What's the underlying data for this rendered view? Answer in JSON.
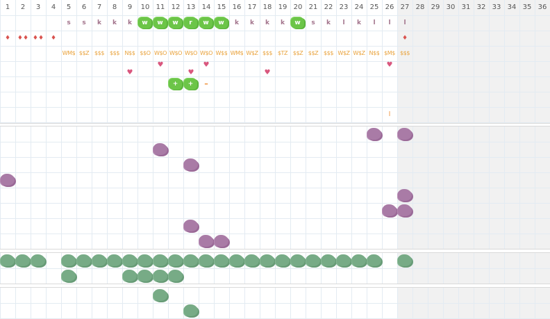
{
  "columns": [
    "1",
    "2",
    "3",
    "4",
    "5",
    "6",
    "7",
    "8",
    "9",
    "10",
    "11",
    "12",
    "13",
    "14",
    "15",
    "16",
    "17",
    "18",
    "19",
    "20",
    "21",
    "22",
    "23",
    "24",
    "25",
    "26",
    "27",
    "28",
    "29",
    "30",
    "31",
    "32",
    "33",
    "34",
    "35",
    "36"
  ],
  "shaded_from_column": 27,
  "colors": {
    "grid_line": "#e3ebf2",
    "shade": "#f1f1f1",
    "letter": "#a2738b",
    "dollar": "#e9a23b",
    "drop": "#d9534f",
    "heart": "#d9577e",
    "badge": "#6cc548",
    "purple_blob": "#a97ba6",
    "green_blob": "#77ab86",
    "minus": "#ee8a2c"
  },
  "rows": {
    "letters": [
      {
        "col": 5,
        "text": "s"
      },
      {
        "col": 6,
        "text": "s"
      },
      {
        "col": 7,
        "text": "k"
      },
      {
        "col": 8,
        "text": "k"
      },
      {
        "col": 9,
        "text": "k"
      },
      {
        "col": 16,
        "text": "k"
      },
      {
        "col": 17,
        "text": "k"
      },
      {
        "col": 18,
        "text": "k"
      },
      {
        "col": 19,
        "text": "k"
      },
      {
        "col": 21,
        "text": "s"
      },
      {
        "col": 22,
        "text": "k"
      },
      {
        "col": 23,
        "text": "l"
      },
      {
        "col": 24,
        "text": "k"
      },
      {
        "col": 25,
        "text": "l"
      },
      {
        "col": 26,
        "text": "l"
      },
      {
        "col": 27,
        "text": "l"
      }
    ],
    "badges": [
      {
        "col": 10,
        "text": "w"
      },
      {
        "col": 11,
        "text": "w"
      },
      {
        "col": 12,
        "text": "w"
      },
      {
        "col": 13,
        "text": "r"
      },
      {
        "col": 14,
        "text": "w"
      },
      {
        "col": 15,
        "text": "w"
      },
      {
        "col": 20,
        "text": "w"
      }
    ],
    "drops": [
      {
        "col": 1,
        "text": "♦"
      },
      {
        "col": 2,
        "text": "♦♦"
      },
      {
        "col": 3,
        "text": "♦♦"
      },
      {
        "col": 4,
        "text": "♦"
      },
      {
        "col": 27,
        "text": "♦"
      }
    ],
    "dollars": [
      {
        "col": 5,
        "text": "WM$"
      },
      {
        "col": 6,
        "text": "$$Z"
      },
      {
        "col": 7,
        "text": "$$$"
      },
      {
        "col": 8,
        "text": "$$$"
      },
      {
        "col": 9,
        "text": "N$$"
      },
      {
        "col": 10,
        "text": "$$O"
      },
      {
        "col": 11,
        "text": "W$O"
      },
      {
        "col": 12,
        "text": "W$O"
      },
      {
        "col": 13,
        "text": "W$O"
      },
      {
        "col": 14,
        "text": "W$O"
      },
      {
        "col": 15,
        "text": "W$$"
      },
      {
        "col": 16,
        "text": "WM$"
      },
      {
        "col": 17,
        "text": "W$Z"
      },
      {
        "col": 18,
        "text": "$$$"
      },
      {
        "col": 19,
        "text": "$TZ"
      },
      {
        "col": 20,
        "text": "$$Z"
      },
      {
        "col": 21,
        "text": "$$Z"
      },
      {
        "col": 22,
        "text": "$$$"
      },
      {
        "col": 23,
        "text": "W$Z"
      },
      {
        "col": 24,
        "text": "W$Z"
      },
      {
        "col": 25,
        "text": "N$$"
      },
      {
        "col": 26,
        "text": "$M$"
      },
      {
        "col": 27,
        "text": "$$$"
      }
    ],
    "hearts": [
      {
        "col": 9,
        "text": "♥",
        "row": "a"
      },
      {
        "col": 11,
        "text": "♥",
        "row": "b"
      },
      {
        "col": 13,
        "text": "♥",
        "row": "a"
      },
      {
        "col": 14,
        "text": "♥",
        "row": "b"
      },
      {
        "col": 18,
        "text": "♥",
        "row": "a"
      },
      {
        "col": 26,
        "text": "♥",
        "row": "b"
      }
    ],
    "plus_badges": [
      {
        "col": 12,
        "text": "+"
      },
      {
        "col": 13,
        "text": "+"
      }
    ],
    "minus_marks": [
      {
        "col": 14,
        "text": "–"
      }
    ],
    "ticks": [
      {
        "col": 26,
        "text": "l"
      }
    ]
  },
  "purple_blobs": [
    {
      "col": 25,
      "row": 0
    },
    {
      "col": 27,
      "row": 0
    },
    {
      "col": 11,
      "row": 1
    },
    {
      "col": 13,
      "row": 2
    },
    {
      "col": 1,
      "row": 3
    },
    {
      "col": 27,
      "row": 4
    },
    {
      "col": 26,
      "row": 5
    },
    {
      "col": 27,
      "row": 5
    },
    {
      "col": 13,
      "row": 6
    },
    {
      "col": 14,
      "row": 7
    },
    {
      "col": 15,
      "row": 7
    }
  ],
  "green_blobs_a": [
    {
      "col": 1,
      "row": 0
    },
    {
      "col": 2,
      "row": 0
    },
    {
      "col": 3,
      "row": 0
    },
    {
      "col": 5,
      "row": 0
    },
    {
      "col": 6,
      "row": 0
    },
    {
      "col": 7,
      "row": 0
    },
    {
      "col": 8,
      "row": 0
    },
    {
      "col": 9,
      "row": 0
    },
    {
      "col": 10,
      "row": 0
    },
    {
      "col": 11,
      "row": 0
    },
    {
      "col": 12,
      "row": 0
    },
    {
      "col": 13,
      "row": 0
    },
    {
      "col": 14,
      "row": 0
    },
    {
      "col": 15,
      "row": 0
    },
    {
      "col": 16,
      "row": 0
    },
    {
      "col": 17,
      "row": 0
    },
    {
      "col": 18,
      "row": 0
    },
    {
      "col": 19,
      "row": 0
    },
    {
      "col": 20,
      "row": 0
    },
    {
      "col": 21,
      "row": 0
    },
    {
      "col": 22,
      "row": 0
    },
    {
      "col": 23,
      "row": 0
    },
    {
      "col": 24,
      "row": 0
    },
    {
      "col": 25,
      "row": 0
    },
    {
      "col": 27,
      "row": 0
    },
    {
      "col": 5,
      "row": 1
    },
    {
      "col": 9,
      "row": 1
    },
    {
      "col": 10,
      "row": 1
    },
    {
      "col": 11,
      "row": 1
    },
    {
      "col": 12,
      "row": 1
    }
  ],
  "green_blobs_b": [
    {
      "col": 11,
      "row": 0
    },
    {
      "col": 13,
      "row": 1
    }
  ]
}
